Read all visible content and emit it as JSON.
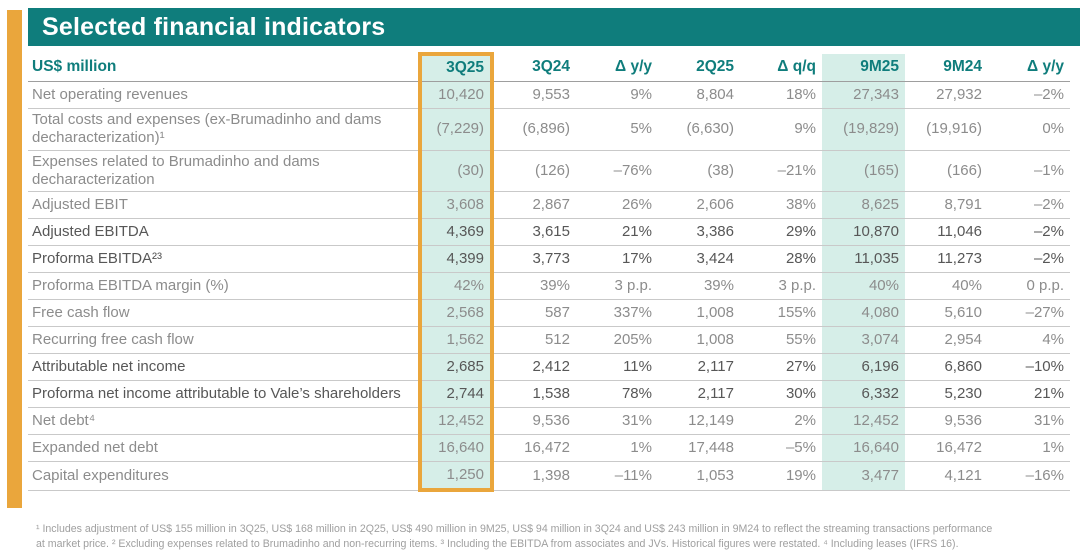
{
  "title": "Selected financial indicators",
  "colors": {
    "teal": "#0F7D7C",
    "gold": "#EAA63C",
    "mint_highlight": "#D6EEE8",
    "row_line": "#C9C9C9",
    "text_gray": "#8C8C8C",
    "text_bold_gray": "#575757"
  },
  "highlight": {
    "boxed_column": "3Q25",
    "shaded_columns": [
      "3Q25",
      "9M25"
    ]
  },
  "table": {
    "unit_label": "US$ million",
    "columns": [
      "3Q25",
      "3Q24",
      "Δ y/y",
      "2Q25",
      "Δ q/q",
      "9M25",
      "9M24",
      "Δ y/y"
    ],
    "rows": [
      {
        "label": "Net operating revenues",
        "bold": false,
        "tall": false,
        "values": [
          "10,420",
          "9,553",
          "9%",
          "8,804",
          "18%",
          "27,343",
          "27,932",
          "–2%"
        ]
      },
      {
        "label": "Total costs and expenses (ex-Brumadinho and dams decharacterization)¹",
        "bold": false,
        "tall": true,
        "values": [
          "(7,229)",
          "(6,896)",
          "5%",
          "(6,630)",
          "9%",
          "(19,829)",
          "(19,916)",
          "0%"
        ]
      },
      {
        "label": "Expenses related to Brumadinho and dams decharacterization",
        "bold": false,
        "tall": true,
        "values": [
          "(30)",
          "(126)",
          "–76%",
          "(38)",
          "–21%",
          "(165)",
          "(166)",
          "–1%"
        ]
      },
      {
        "label": "Adjusted EBIT",
        "bold": false,
        "tall": false,
        "values": [
          "3,608",
          "2,867",
          "26%",
          "2,606",
          "38%",
          "8,625",
          "8,791",
          "–2%"
        ]
      },
      {
        "label": "Adjusted EBITDA",
        "bold": true,
        "tall": false,
        "values": [
          "4,369",
          "3,615",
          "21%",
          "3,386",
          "29%",
          "10,870",
          "11,046",
          "–2%"
        ]
      },
      {
        "label": "Proforma EBITDA²³",
        "bold": true,
        "tall": false,
        "values": [
          "4,399",
          "3,773",
          "17%",
          "3,424",
          "28%",
          "11,035",
          "11,273",
          "–2%"
        ]
      },
      {
        "label": "Proforma EBITDA margin (%)",
        "bold": false,
        "tall": false,
        "values": [
          "42%",
          "39%",
          "3 p.p.",
          "39%",
          "3 p.p.",
          "40%",
          "40%",
          "0 p.p."
        ]
      },
      {
        "label": "Free cash flow",
        "bold": false,
        "tall": false,
        "values": [
          "2,568",
          "587",
          "337%",
          "1,008",
          "155%",
          "4,080",
          "5,610",
          "–27%"
        ]
      },
      {
        "label": "Recurring free cash flow",
        "bold": false,
        "tall": false,
        "values": [
          "1,562",
          "512",
          "205%",
          "1,008",
          "55%",
          "3,074",
          "2,954",
          "4%"
        ]
      },
      {
        "label": "Attributable net income",
        "bold": true,
        "tall": false,
        "values": [
          "2,685",
          "2,412",
          "11%",
          "2,117",
          "27%",
          "6,196",
          "6,860",
          "–10%"
        ]
      },
      {
        "label": "Proforma net income attributable to Vale’s shareholders",
        "bold": true,
        "tall": true,
        "values": [
          "2,744",
          "1,538",
          "78%",
          "2,117",
          "30%",
          "6,332",
          "5,230",
          "21%"
        ]
      },
      {
        "label": "Net debt⁴",
        "bold": false,
        "tall": false,
        "values": [
          "12,452",
          "9,536",
          "31%",
          "12,149",
          "2%",
          "12,452",
          "9,536",
          "31%"
        ]
      },
      {
        "label": "Expanded net debt",
        "bold": false,
        "tall": false,
        "values": [
          "16,640",
          "16,472",
          "1%",
          "17,448",
          "–5%",
          "16,640",
          "16,472",
          "1%"
        ]
      },
      {
        "label": "Capital expenditures",
        "bold": false,
        "tall": false,
        "values": [
          "1,250",
          "1,398",
          "–11%",
          "1,053",
          "19%",
          "3,477",
          "4,121",
          "–16%"
        ]
      }
    ]
  },
  "footnotes": {
    "lines": [
      "¹ Includes adjustment of US$ 155 million in 3Q25, US$ 168 million in 2Q25, US$ 490 million in 9M25, US$ 94 million in 3Q24 and US$ 243 million in 9M24 to reflect the streaming transactions performance",
      "at market price. ² Excluding expenses related to Brumadinho and non-recurring items. ³ Including the EBITDA from associates and JVs. Historical figures were restated. ⁴ Including leases (IFRS 16)."
    ]
  }
}
